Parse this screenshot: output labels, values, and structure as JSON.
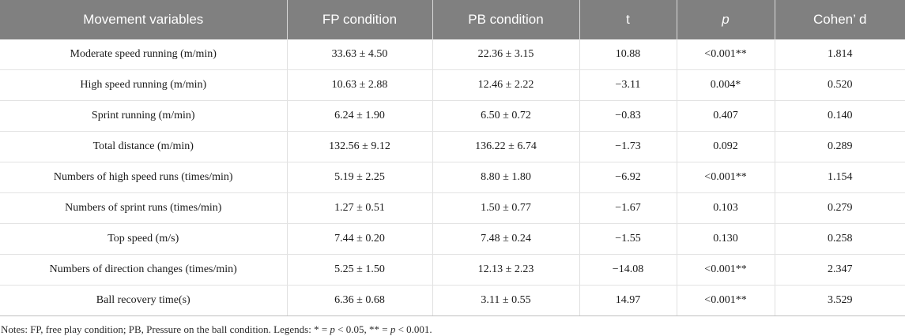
{
  "table": {
    "headers": [
      "Movement variables",
      "FP condition",
      "PB condition",
      "t",
      "p",
      "Cohen’ d"
    ],
    "rows": [
      [
        "Moderate speed running (m/min)",
        "33.63 ± 4.50",
        "22.36 ± 3.15",
        "10.88",
        "<0.001**",
        "1.814"
      ],
      [
        "High speed running (m/min)",
        "10.63 ± 2.88",
        "12.46 ± 2.22",
        "−3.11",
        "0.004*",
        "0.520"
      ],
      [
        "Sprint running (m/min)",
        "6.24 ± 1.90",
        "6.50 ± 0.72",
        "−0.83",
        "0.407",
        "0.140"
      ],
      [
        "Total distance (m/min)",
        "132.56 ± 9.12",
        "136.22 ± 6.74",
        "−1.73",
        "0.092",
        "0.289"
      ],
      [
        "Numbers of high speed runs (times/min)",
        "5.19 ± 2.25",
        "8.80 ± 1.80",
        "−6.92",
        "<0.001**",
        "1.154"
      ],
      [
        "Numbers of sprint runs (times/min)",
        "1.27 ± 0.51",
        "1.50 ± 0.77",
        "−1.67",
        "0.103",
        "0.279"
      ],
      [
        "Top speed (m/s)",
        "7.44 ± 0.20",
        "7.48 ± 0.24",
        "−1.55",
        "0.130",
        "0.258"
      ],
      [
        "Numbers of direction changes (times/min)",
        "5.25 ± 1.50",
        "12.13 ± 2.23",
        "−14.08",
        "<0.001**",
        "2.347"
      ],
      [
        "Ball recovery time(s)",
        "6.36 ± 0.68",
        "3.11 ± 0.55",
        "14.97",
        "<0.001**",
        "3.529"
      ]
    ]
  },
  "notes": {
    "part1": "Notes: FP, free play condition; PB, Pressure on the ball condition. Legends: * = ",
    "p1": "p",
    "part2": " < 0.05, ** = ",
    "p2": "p",
    "part3": " < 0.001."
  }
}
